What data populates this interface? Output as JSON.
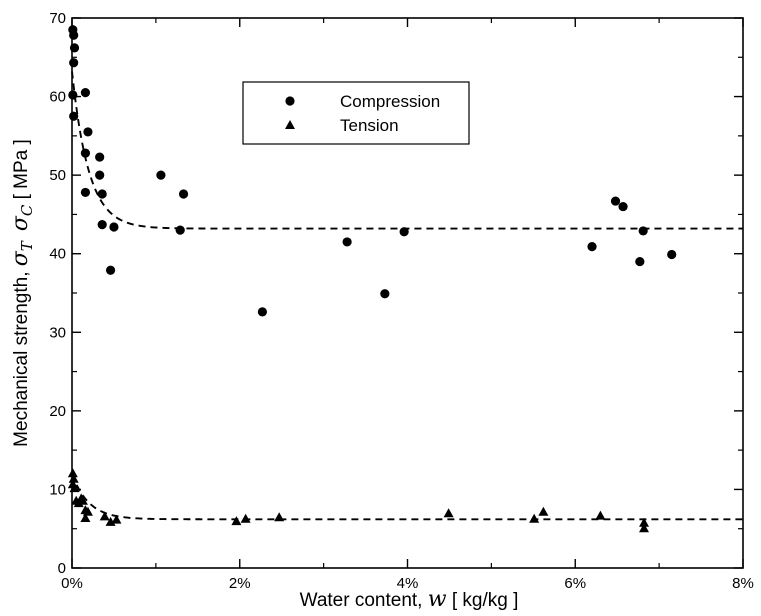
{
  "chart_data": {
    "type": "scatter",
    "xlabel": {
      "prefix": "Water content, ",
      "symbol": "w",
      "suffix": "   [ kg/kg ]"
    },
    "ylabel": {
      "prefix": "Mechanical strength, ",
      "symbol1": "σ",
      "sub1": "T",
      "symbol2": "σ",
      "sub2": "C",
      "suffix": "  [ MPa ]"
    },
    "xlim": [
      0,
      0.08
    ],
    "ylim": [
      0,
      70
    ],
    "x_ticks": [
      {
        "value": 0,
        "label": "0%"
      },
      {
        "value": 0.02,
        "label": "2%"
      },
      {
        "value": 0.04,
        "label": "4%"
      },
      {
        "value": 0.06,
        "label": "6%"
      },
      {
        "value": 0.08,
        "label": "8%"
      }
    ],
    "y_ticks": [
      0,
      10,
      20,
      30,
      40,
      50,
      60,
      70
    ],
    "grid": false,
    "legend_position": "top-center",
    "series": [
      {
        "name": "Compression",
        "marker": "circle",
        "points": [
          [
            0.0001,
            68.5
          ],
          [
            0.0002,
            67.8
          ],
          [
            0.0003,
            66.2
          ],
          [
            0.0002,
            64.3
          ],
          [
            0.0001,
            60.2
          ],
          [
            0.0002,
            57.5
          ],
          [
            0.0016,
            60.5
          ],
          [
            0.0019,
            55.5
          ],
          [
            0.0016,
            52.8
          ],
          [
            0.0016,
            47.8
          ],
          [
            0.0033,
            52.3
          ],
          [
            0.0033,
            50.0
          ],
          [
            0.0036,
            47.6
          ],
          [
            0.0036,
            43.7
          ],
          [
            0.005,
            43.4
          ],
          [
            0.0046,
            37.9
          ],
          [
            0.0106,
            50.0
          ],
          [
            0.0133,
            47.6
          ],
          [
            0.0129,
            43.0
          ],
          [
            0.0227,
            32.6
          ],
          [
            0.0328,
            41.5
          ],
          [
            0.0373,
            34.9
          ],
          [
            0.0396,
            42.8
          ],
          [
            0.062,
            40.9
          ],
          [
            0.0648,
            46.7
          ],
          [
            0.0657,
            46.0
          ],
          [
            0.0677,
            39.0
          ],
          [
            0.0681,
            42.9
          ],
          [
            0.0715,
            39.9
          ]
        ]
      },
      {
        "name": "Tension",
        "marker": "triangle",
        "points": [
          [
            0.0001,
            12.0
          ],
          [
            0.0002,
            11.3
          ],
          [
            0.0001,
            10.6
          ],
          [
            0.0003,
            10.1
          ],
          [
            0.0005,
            8.5
          ],
          [
            0.0008,
            8.2
          ],
          [
            0.0011,
            8.8
          ],
          [
            0.0013,
            8.5
          ],
          [
            0.0016,
            7.3
          ],
          [
            0.0019,
            7.1
          ],
          [
            0.0016,
            6.3
          ],
          [
            0.0039,
            6.5
          ],
          [
            0.0046,
            5.8
          ],
          [
            0.0053,
            6.1
          ],
          [
            0.0196,
            5.9
          ],
          [
            0.0207,
            6.2
          ],
          [
            0.0247,
            6.4
          ],
          [
            0.0449,
            6.9
          ],
          [
            0.0551,
            6.2
          ],
          [
            0.0562,
            7.1
          ],
          [
            0.063,
            6.6
          ],
          [
            0.0682,
            5.7
          ],
          [
            0.0682,
            5.0
          ]
        ]
      }
    ],
    "fit_lines": [
      {
        "type": "exponential-decay",
        "plateau": 43.2,
        "amplitude": 20.0,
        "rate": 500,
        "style": "dashed"
      },
      {
        "type": "exponential-decay",
        "plateau": 6.2,
        "amplitude": 5.8,
        "rate": 500,
        "style": "dashed"
      }
    ]
  }
}
